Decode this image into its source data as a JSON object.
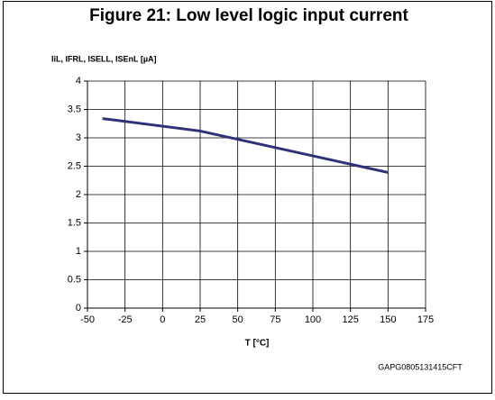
{
  "chart_data": {
    "type": "line",
    "title": "Figure 21: Low level logic input current",
    "y_label": "IiL, IFRL, ISELL, ISEnL [µA]",
    "x_label": "T [°C]",
    "footnote": "GAPG0805131415CFT",
    "x": [
      -40,
      25,
      150
    ],
    "series": [
      {
        "name": "IiL",
        "color": "#2e3278",
        "values": [
          3.34,
          3.12,
          2.39
        ]
      }
    ],
    "xlim": [
      -50,
      175
    ],
    "xticks": [
      -50,
      -25,
      0,
      25,
      50,
      75,
      100,
      125,
      150,
      175
    ],
    "ylim": [
      0,
      4
    ],
    "yticks": [
      0,
      0.5,
      1,
      1.5,
      2,
      2.5,
      3,
      3.5,
      4
    ],
    "grid": true
  }
}
